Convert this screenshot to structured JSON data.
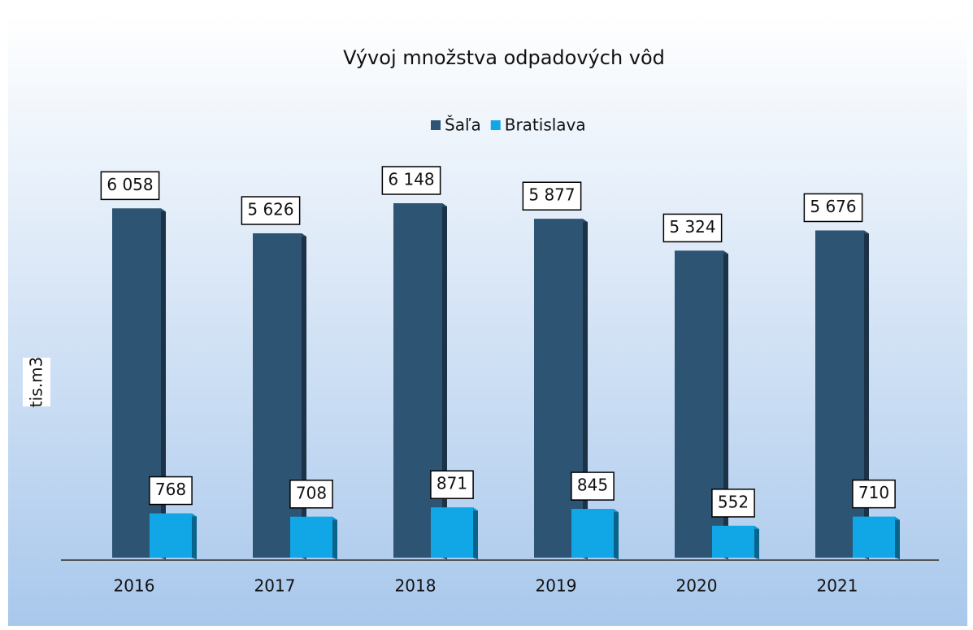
{
  "chart_data": {
    "type": "bar",
    "title": "Vývoj množstva odpadových vôd",
    "y_label": "tis.m3",
    "categories": [
      "2016",
      "2017",
      "2018",
      "2019",
      "2020",
      "2021"
    ],
    "series": [
      {
        "name": "Šaľa",
        "color": "#2e5474",
        "values": [
          6058,
          5626,
          6148,
          5877,
          5324,
          5676
        ],
        "value_labels": [
          "6 058",
          "5 626",
          "6 148",
          "5 877",
          "5 324",
          "5 676"
        ]
      },
      {
        "name": "Bratislava",
        "color": "#11a6e6",
        "values": [
          768,
          708,
          871,
          845,
          552,
          710
        ],
        "value_labels": [
          "768",
          "708",
          "871",
          "845",
          "552",
          "710"
        ]
      }
    ],
    "legend": "top"
  }
}
